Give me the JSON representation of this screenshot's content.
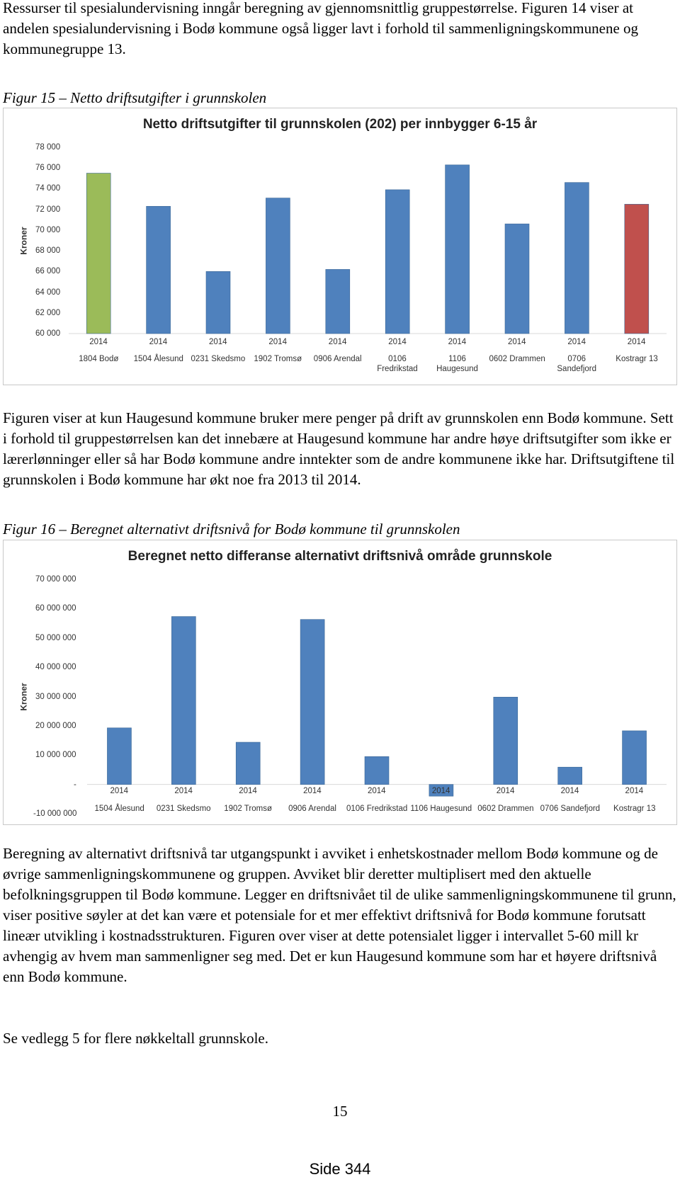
{
  "intro": "Ressurser til spesialundervisning inngår beregning av gjennomsnittlig gruppestørrelse. Figuren 14 viser at andelen spesialundervisning i Bodø kommune også ligger lavt i forhold til sammenligningskommunene og kommunegruppe 13.",
  "captions": [
    "Figur 15 – Netto driftsutgifter i grunnskolen",
    "Figur 16 – Beregnet alternativt driftsnivå for Bodø kommune til grunnskolen"
  ],
  "paragraphs": [
    "Figuren viser at kun Haugesund kommune bruker mere penger på drift av grunnskolen enn Bodø kommune. Sett i forhold til gruppestørrelsen kan det innebære at Haugesund kommune har andre høye driftsutgifter som ikke er lærerlønninger eller så har Bodø kommune andre inntekter som de andre kommunene ikke har. Driftsutgiftene til grunnskolen i Bodø kommune har økt noe fra 2013 til 2014.",
    "Beregning av alternativt driftsnivå tar utgangspunkt i avviket i enhetskostnader mellom Bodø kommune og de øvrige sammenligningskommunene og gruppen. Avviket blir deretter multiplisert med den aktuelle befolkningsgruppen til Bodø kommune. Legger en driftsnivået til de ulike sammenligningskommunene til grunn, viser positive søyler at det kan være et potensiale for et mer effektivt driftsnivå for Bodø kommune forutsatt lineær utvikling i kostnadsstrukturen. Figuren over viser at dette potensialet ligger i intervallet 5-60 mill kr avhengig av hvem man sammenligner seg med. Det er kun Haugesund kommune som har et høyere driftsnivå enn Bodø kommune.",
    "Se vedlegg 5 for flere nøkkeltall grunnskole."
  ],
  "page_number": "15",
  "footer": "Side 344",
  "chart_data": [
    {
      "type": "bar",
      "title": "Netto driftsutgifter til grunnskolen (202) per innbygger 6-15 år",
      "y_label": "Kroner",
      "category_years": [
        "2014",
        "2014",
        "2014",
        "2014",
        "2014",
        "2014",
        "2014",
        "2014",
        "2014",
        "2014"
      ],
      "categories": [
        "1804 Bodø",
        "1504 Ålesund",
        "0231 Skedsmo",
        "1902 Tromsø",
        "0906 Arendal",
        "0106\nFredrikstad",
        "1106\nHaugesund",
        "0602 Drammen",
        "0706\nSandefjord",
        "Kostragr 13"
      ],
      "values": [
        75500,
        72300,
        66000,
        73100,
        66200,
        73900,
        76300,
        70600,
        74600,
        72500
      ],
      "colors": [
        "#9bbb59",
        "#4f81bd",
        "#4f81bd",
        "#4f81bd",
        "#4f81bd",
        "#4f81bd",
        "#4f81bd",
        "#4f81bd",
        "#4f81bd",
        "#c0504d"
      ],
      "ylim": [
        60000,
        78000
      ],
      "yticks": [
        {
          "value": 60000,
          "label": "60 000"
        },
        {
          "value": 62000,
          "label": "62 000"
        },
        {
          "value": 64000,
          "label": "64 000"
        },
        {
          "value": 66000,
          "label": "66 000"
        },
        {
          "value": 68000,
          "label": "68 000"
        },
        {
          "value": 70000,
          "label": "70 000"
        },
        {
          "value": 72000,
          "label": "72 000"
        },
        {
          "value": 74000,
          "label": "74 000"
        },
        {
          "value": 76000,
          "label": "76 000"
        },
        {
          "value": 78000,
          "label": "78 000"
        }
      ],
      "grid": false
    },
    {
      "type": "bar",
      "title": "Beregnet netto differanse  alternativt driftsnivå område grunnskole",
      "y_label": "Kroner",
      "category_years": [
        "2014",
        "2014",
        "2014",
        "2014",
        "2014",
        "2014",
        "2014",
        "2014",
        "2014"
      ],
      "categories": [
        "1504 Ålesund",
        "0231 Skedsmo",
        "1902 Tromsø",
        "0906 Arendal",
        "0106 Fredrikstad",
        "1106 Haugesund",
        "0602 Drammen",
        "0706 Sandefjord",
        "Kostragr 13"
      ],
      "values": [
        19300000,
        57300000,
        14400000,
        56300000,
        9500000,
        -4000000,
        29800000,
        5900000,
        18300000
      ],
      "colors": [
        "#4f81bd",
        "#4f81bd",
        "#4f81bd",
        "#4f81bd",
        "#4f81bd",
        "#4f81bd",
        "#4f81bd",
        "#4f81bd",
        "#4f81bd"
      ],
      "ylim": [
        -10000000,
        70000000
      ],
      "yticks": [
        {
          "value": -10000000,
          "label": "-10 000 000"
        },
        {
          "value": 0,
          "label": "-"
        },
        {
          "value": 10000000,
          "label": "10 000 000"
        },
        {
          "value": 20000000,
          "label": "20 000 000"
        },
        {
          "value": 30000000,
          "label": "30 000 000"
        },
        {
          "value": 40000000,
          "label": "40 000 000"
        },
        {
          "value": 50000000,
          "label": "50 000 000"
        },
        {
          "value": 60000000,
          "label": "60 000 000"
        },
        {
          "value": 70000000,
          "label": "70 000 000"
        }
      ],
      "grid": false
    }
  ]
}
